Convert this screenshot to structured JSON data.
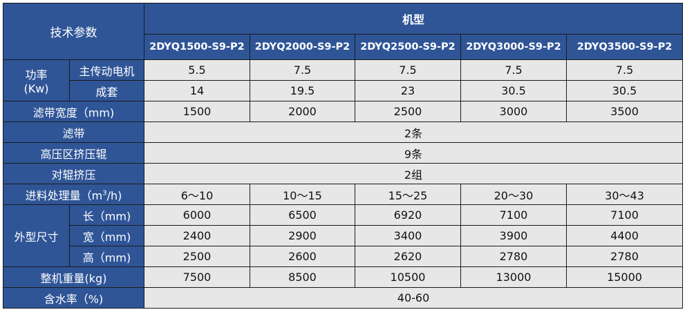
{
  "header": {
    "param_label": "技术参数",
    "group_label": "机型",
    "models": [
      "2DYQ1500-S9-P2",
      "2DYQ2000-S9-P2",
      "2DYQ2500-S9-P2",
      "2DYQ3000-S9-P2",
      "2DYQ3500-S9-P2"
    ]
  },
  "power": {
    "label_line1": "功率",
    "label_line2": "(Kw)",
    "main_motor": {
      "label": "主传动电机",
      "values": [
        "5.5",
        "7.5",
        "7.5",
        "7.5",
        "7.5"
      ]
    },
    "complete_set": {
      "label": "成套",
      "values": [
        "14",
        "19.5",
        "23",
        "30.5",
        "30.5"
      ]
    }
  },
  "belt_width": {
    "label": "滤带宽度（mm)",
    "values": [
      "1500",
      "2000",
      "2500",
      "3000",
      "3500"
    ]
  },
  "filter_belt": {
    "label": "滤带",
    "value": "2条"
  },
  "high_pressure_rollers": {
    "label": "高压区挤压辊",
    "value": "9条"
  },
  "pair_rollers": {
    "label": "对辊挤压",
    "value": "2组"
  },
  "throughput": {
    "label_pre": "进料处理量（m",
    "label_sup": "3",
    "label_post": "/h)",
    "values": [
      "6～10",
      "10～15",
      "15～25",
      "20～30",
      "30～43"
    ]
  },
  "dimensions": {
    "label": "外型尺寸",
    "length": {
      "label": "长（mm)",
      "values": [
        "6000",
        "6500",
        "6920",
        "7100",
        "7100"
      ]
    },
    "width": {
      "label": "宽（mm)",
      "values": [
        "2400",
        "2900",
        "3400",
        "3900",
        "4400"
      ]
    },
    "height": {
      "label": "高（mm)",
      "values": [
        "2500",
        "2600",
        "2620",
        "2780",
        "2780"
      ]
    }
  },
  "weight": {
    "label": "整机重量(kg)",
    "values": [
      "7500",
      "8500",
      "10500",
      "13000",
      "15000"
    ]
  },
  "moisture": {
    "label": "含水率（%)",
    "value": "40-60"
  },
  "colors": {
    "header_blue": "#2f5597",
    "cell_gray": "#e8e7e7"
  }
}
